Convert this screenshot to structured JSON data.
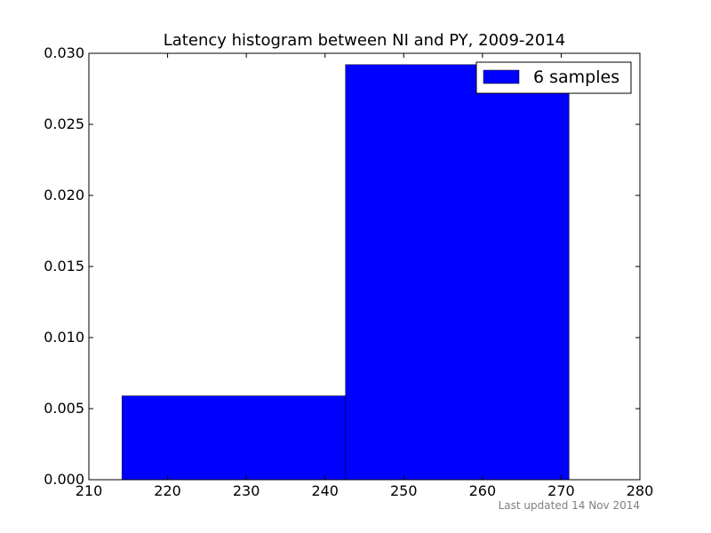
{
  "chart_data": {
    "type": "bar",
    "title": "Latency histogram between NI and PY, 2009-2014",
    "xlabel": "",
    "ylabel": "",
    "xlim": [
      210,
      280
    ],
    "ylim": [
      0,
      0.03
    ],
    "x_ticks": [
      "210",
      "220",
      "230",
      "240",
      "250",
      "260",
      "270",
      "280"
    ],
    "y_ticks": [
      "0.000",
      "0.005",
      "0.010",
      "0.015",
      "0.020",
      "0.025",
      "0.030"
    ],
    "bins": [
      {
        "start": 214.2,
        "end": 242.6,
        "value": 0.0059
      },
      {
        "start": 242.6,
        "end": 271.0,
        "value": 0.0292
      }
    ],
    "series": [
      {
        "name": "6 samples",
        "color": "#0000ff"
      }
    ],
    "legend_position": "top-right",
    "grid": false
  },
  "footer": {
    "text": "Last updated 14 Nov 2014"
  }
}
